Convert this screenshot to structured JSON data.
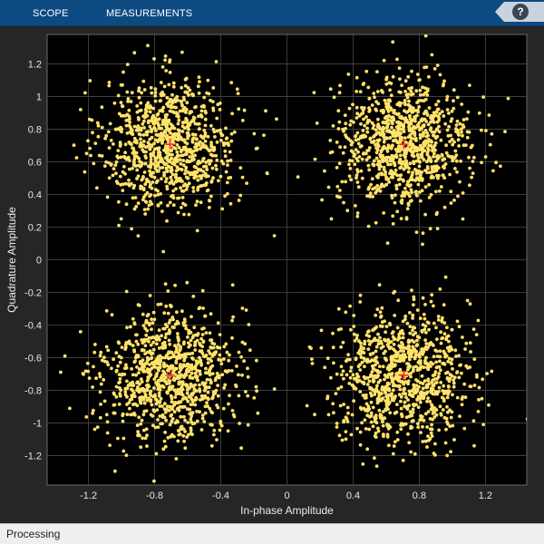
{
  "toolstrip": {
    "tabs": [
      {
        "label": "SCOPE"
      },
      {
        "label": "MEASUREMENTS"
      }
    ],
    "help_label": "?"
  },
  "status": {
    "text": "Processing"
  },
  "colors": {
    "points": "#ffe26a",
    "reference": "#ff2a2a",
    "axes_background": "#000000",
    "grid": "#4a4a4a"
  },
  "chart_data": {
    "type": "scatter",
    "title": "",
    "xlabel": "In-phase Amplitude",
    "ylabel": "Quadrature Amplitude",
    "xlim": [
      -1.45,
      1.45
    ],
    "ylim": [
      -1.38,
      1.38
    ],
    "grid": true,
    "xticks": [
      -1.2,
      -0.8,
      -0.4,
      0,
      0.4,
      0.8,
      1.2
    ],
    "xtick_labels": [
      "-1.2",
      "-0.8",
      "-0.4",
      "0",
      "0.4",
      "0.8",
      "1.2"
    ],
    "yticks": [
      1.2,
      1,
      0.8,
      0.6,
      0.4,
      0.2,
      0,
      -0.2,
      -0.4,
      -0.6,
      -0.8,
      -1,
      -1.2
    ],
    "ytick_labels": [
      "1.2",
      "1",
      "0.8",
      "0.6",
      "0.4",
      "0.2",
      "0",
      "-0.2",
      "-0.4",
      "-0.6",
      "-0.8",
      "-1",
      "-1.2"
    ],
    "reference_constellation": [
      [
        -0.707,
        0.707
      ],
      [
        0.707,
        0.707
      ],
      [
        -0.707,
        -0.707
      ],
      [
        0.707,
        -0.707
      ]
    ],
    "noise_std": 0.2,
    "points_per_symbol": 950
  }
}
